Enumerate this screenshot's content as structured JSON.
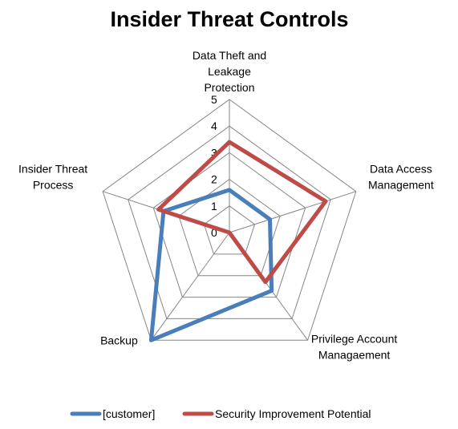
{
  "chart_data": {
    "type": "radar",
    "title": "Insider Threat Controls",
    "categories": [
      [
        "Data Theft and",
        "Leakage",
        "Protection"
      ],
      [
        "Data Access",
        "Management"
      ],
      [
        "Privilege Account",
        "Managaement"
      ],
      [
        "Backup"
      ],
      [
        "Insider Threat",
        "Process"
      ]
    ],
    "rlim": [
      0,
      5
    ],
    "ticks": [
      "0",
      "1",
      "2",
      "3",
      "4",
      "5"
    ],
    "grid": true,
    "legend_position": "bottom",
    "series": [
      {
        "name": "[customer]",
        "color": "#4a7ebb",
        "values": [
          1.6,
          1.6,
          2.7,
          5.0,
          2.6
        ]
      },
      {
        "name": "Security Improvement Potential",
        "color": "#be4b48",
        "values": [
          3.4,
          3.8,
          2.3,
          0.0,
          2.8
        ]
      }
    ]
  }
}
